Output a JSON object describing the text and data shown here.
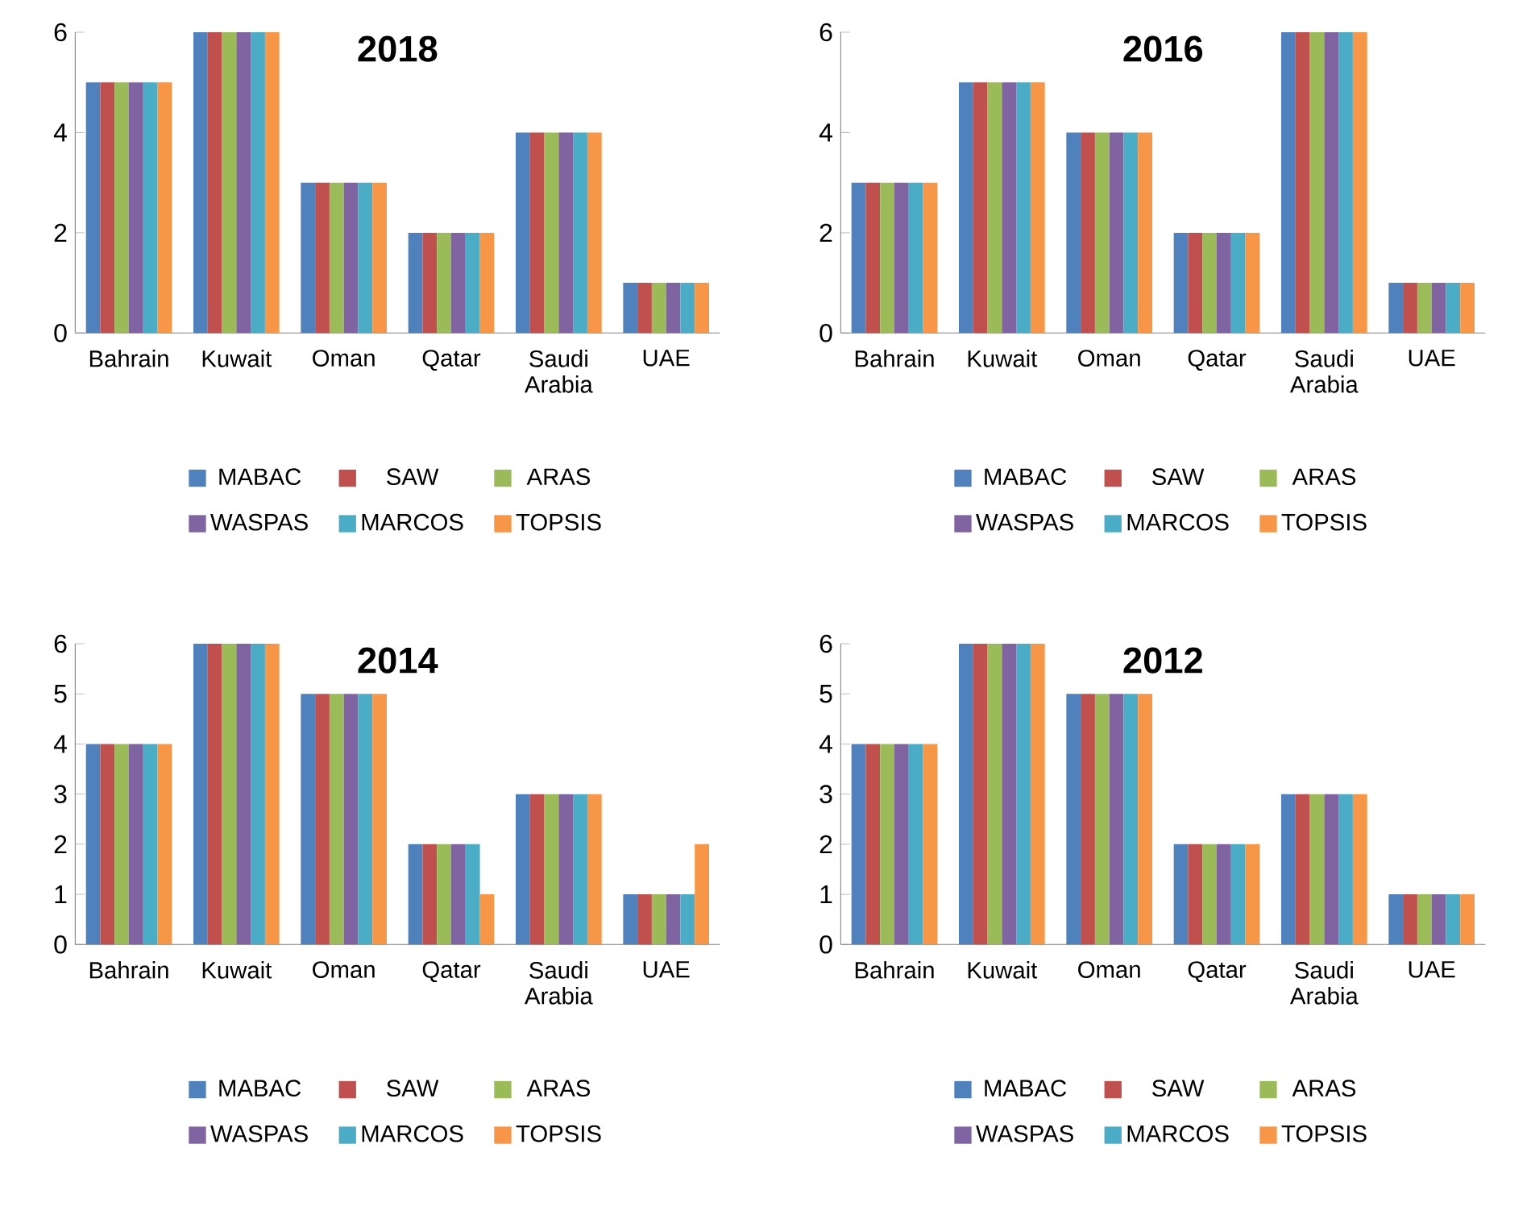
{
  "chart_data": [
    {
      "type": "bar",
      "title": "2018",
      "categories": [
        "Bahrain",
        "Kuwait",
        "Oman",
        "Qatar",
        "Saudi Arabia",
        "UAE"
      ],
      "ylim": [
        0,
        6
      ],
      "yticks": [
        0,
        2,
        4,
        6
      ],
      "legend": "bottom",
      "series": [
        {
          "name": "MABAC",
          "color": "#4f81bd",
          "values": [
            5,
            6,
            3,
            2,
            4,
            1
          ]
        },
        {
          "name": "SAW",
          "color": "#c0504d",
          "values": [
            5,
            6,
            3,
            2,
            4,
            1
          ]
        },
        {
          "name": "ARAS",
          "color": "#9bbb59",
          "values": [
            5,
            6,
            3,
            2,
            4,
            1
          ]
        },
        {
          "name": "WASPAS",
          "color": "#8064a2",
          "values": [
            5,
            6,
            3,
            2,
            4,
            1
          ]
        },
        {
          "name": "MARCOS",
          "color": "#4bacc6",
          "values": [
            5,
            6,
            3,
            2,
            4,
            1
          ]
        },
        {
          "name": "TOPSIS",
          "color": "#f79646",
          "values": [
            5,
            6,
            3,
            2,
            4,
            1
          ]
        }
      ]
    },
    {
      "type": "bar",
      "title": "2016",
      "categories": [
        "Bahrain",
        "Kuwait",
        "Oman",
        "Qatar",
        "Saudi Arabia",
        "UAE"
      ],
      "ylim": [
        0,
        6
      ],
      "yticks": [
        0,
        2,
        4,
        6
      ],
      "legend": "bottom",
      "series": [
        {
          "name": "MABAC",
          "color": "#4f81bd",
          "values": [
            3,
            5,
            4,
            2,
            6,
            1
          ]
        },
        {
          "name": "SAW",
          "color": "#c0504d",
          "values": [
            3,
            5,
            4,
            2,
            6,
            1
          ]
        },
        {
          "name": "ARAS",
          "color": "#9bbb59",
          "values": [
            3,
            5,
            4,
            2,
            6,
            1
          ]
        },
        {
          "name": "WASPAS",
          "color": "#8064a2",
          "values": [
            3,
            5,
            4,
            2,
            6,
            1
          ]
        },
        {
          "name": "MARCOS",
          "color": "#4bacc6",
          "values": [
            3,
            5,
            4,
            2,
            6,
            1
          ]
        },
        {
          "name": "TOPSIS",
          "color": "#f79646",
          "values": [
            3,
            5,
            4,
            2,
            6,
            1
          ]
        }
      ]
    },
    {
      "type": "bar",
      "title": "2014",
      "categories": [
        "Bahrain",
        "Kuwait",
        "Oman",
        "Qatar",
        "Saudi Arabia",
        "UAE"
      ],
      "ylim": [
        0,
        6
      ],
      "yticks": [
        0,
        1,
        2,
        3,
        4,
        5,
        6
      ],
      "legend": "bottom",
      "series": [
        {
          "name": "MABAC",
          "color": "#4f81bd",
          "values": [
            4,
            6,
            5,
            2,
            3,
            1
          ]
        },
        {
          "name": "SAW",
          "color": "#c0504d",
          "values": [
            4,
            6,
            5,
            2,
            3,
            1
          ]
        },
        {
          "name": "ARAS",
          "color": "#9bbb59",
          "values": [
            4,
            6,
            5,
            2,
            3,
            1
          ]
        },
        {
          "name": "WASPAS",
          "color": "#8064a2",
          "values": [
            4,
            6,
            5,
            2,
            3,
            1
          ]
        },
        {
          "name": "MARCOS",
          "color": "#4bacc6",
          "values": [
            4,
            6,
            5,
            2,
            3,
            1
          ]
        },
        {
          "name": "TOPSIS",
          "color": "#f79646",
          "values": [
            4,
            6,
            5,
            1,
            3,
            2
          ]
        }
      ]
    },
    {
      "type": "bar",
      "title": "2012",
      "categories": [
        "Bahrain",
        "Kuwait",
        "Oman",
        "Qatar",
        "Saudi Arabia",
        "UAE"
      ],
      "ylim": [
        0,
        6
      ],
      "yticks": [
        0,
        1,
        2,
        3,
        4,
        5,
        6
      ],
      "legend": "bottom",
      "series": [
        {
          "name": "MABAC",
          "color": "#4f81bd",
          "values": [
            4,
            6,
            5,
            2,
            3,
            1
          ]
        },
        {
          "name": "SAW",
          "color": "#c0504d",
          "values": [
            4,
            6,
            5,
            2,
            3,
            1
          ]
        },
        {
          "name": "ARAS",
          "color": "#9bbb59",
          "values": [
            4,
            6,
            5,
            2,
            3,
            1
          ]
        },
        {
          "name": "WASPAS",
          "color": "#8064a2",
          "values": [
            4,
            6,
            5,
            2,
            3,
            1
          ]
        },
        {
          "name": "MARCOS",
          "color": "#4bacc6",
          "values": [
            4,
            6,
            5,
            2,
            3,
            1
          ]
        },
        {
          "name": "TOPSIS",
          "color": "#f79646",
          "values": [
            4,
            6,
            5,
            2,
            3,
            1
          ]
        }
      ]
    }
  ]
}
